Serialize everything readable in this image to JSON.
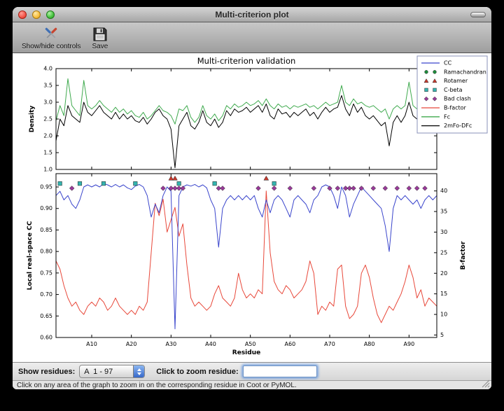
{
  "window": {
    "title": "Multi-criterion plot"
  },
  "toolbar": {
    "buttons": [
      {
        "label": "Show/hide controls",
        "icon": "tools-icon"
      },
      {
        "label": "Save",
        "icon": "save-icon"
      }
    ]
  },
  "controls": {
    "show_residues_label": "Show residues:",
    "residue_range_value": "A  1 - 97",
    "zoom_label": "Click to zoom residue:",
    "zoom_input_value": ""
  },
  "status_bar": {
    "text": "Click on any area of the graph to zoom in on the corresponding residue in Coot or PyMOL."
  },
  "chart_data": {
    "type": "line",
    "title": "Multi-criterion validation",
    "xlabel": "Residue",
    "xlim": [
      1,
      97
    ],
    "n_residues": 97,
    "grid": false,
    "legend_position": "upper right",
    "xticks": [
      {
        "v": 10,
        "label": "A10"
      },
      {
        "v": 20,
        "label": "A20"
      },
      {
        "v": 30,
        "label": "A30"
      },
      {
        "v": 40,
        "label": "A40"
      },
      {
        "v": 50,
        "label": "A50"
      },
      {
        "v": 60,
        "label": "A60"
      },
      {
        "v": 70,
        "label": "A70"
      },
      {
        "v": 80,
        "label": "A80"
      },
      {
        "v": 90,
        "label": "A90"
      }
    ],
    "legend": [
      {
        "label": "CC",
        "type": "line",
        "color": "#3a45cc"
      },
      {
        "label": "Ramachandran",
        "type": "circle",
        "color": "#1e8c3c"
      },
      {
        "label": "Rotamer",
        "type": "triangle",
        "color": "#c93a2e"
      },
      {
        "label": "C-beta",
        "type": "square",
        "color": "#35b5b0"
      },
      {
        "label": "Bad clash",
        "type": "diamond",
        "color": "#993b99"
      },
      {
        "label": "B-factor",
        "type": "line",
        "color": "#e8483a"
      },
      {
        "label": "Fc",
        "type": "line",
        "color": "#3faa4e"
      },
      {
        "label": "2mFo-DFc",
        "type": "line",
        "color": "#000000"
      }
    ],
    "top": {
      "ylabel": "Density",
      "ylim": [
        1.0,
        4.0
      ],
      "yticks": [
        {
          "v": 1.0,
          "label": "1.0"
        },
        {
          "v": 1.5,
          "label": "1.5"
        },
        {
          "v": 2.0,
          "label": "2.0"
        },
        {
          "v": 2.5,
          "label": "2.5"
        },
        {
          "v": 3.0,
          "label": "3.0"
        },
        {
          "v": 3.5,
          "label": "3.5"
        },
        {
          "v": 4.0,
          "label": "4.0"
        }
      ],
      "series": [
        {
          "name": "Fc",
          "color": "#3faa4e",
          "values": [
            2.45,
            2.9,
            2.6,
            3.7,
            2.9,
            2.75,
            2.6,
            3.65,
            2.9,
            2.8,
            2.9,
            3.05,
            2.9,
            2.8,
            2.7,
            2.85,
            2.7,
            2.8,
            2.65,
            2.75,
            2.6,
            2.55,
            2.7,
            2.5,
            2.6,
            2.75,
            2.9,
            2.75,
            2.7,
            2.6,
            2.35,
            2.8,
            2.75,
            2.9,
            2.55,
            2.4,
            2.55,
            2.9,
            2.6,
            2.5,
            2.65,
            2.45,
            2.6,
            2.9,
            2.8,
            2.95,
            2.85,
            2.9,
            3.0,
            2.9,
            2.95,
            3.05,
            2.9,
            3.1,
            2.9,
            2.8,
            2.95,
            2.85,
            2.9,
            2.8,
            2.9,
            2.85,
            2.9,
            2.95,
            2.85,
            2.9,
            2.8,
            2.9,
            3.0,
            2.9,
            2.95,
            3.0,
            3.5,
            3.0,
            2.9,
            3.1,
            2.95,
            3.0,
            2.9,
            2.85,
            2.9,
            2.8,
            2.7,
            2.8,
            2.5,
            2.8,
            2.9,
            2.8,
            2.9,
            3.6,
            2.9,
            2.8,
            2.9,
            2.7,
            2.9,
            3.4,
            3.1
          ]
        },
        {
          "name": "2mFo-DFc",
          "color": "#000000",
          "values": [
            1.85,
            2.5,
            2.3,
            2.9,
            2.6,
            2.5,
            2.4,
            3.0,
            2.7,
            2.6,
            2.75,
            2.9,
            2.7,
            2.6,
            2.5,
            2.7,
            2.5,
            2.65,
            2.5,
            2.6,
            2.45,
            2.4,
            2.55,
            2.35,
            2.5,
            2.7,
            2.8,
            2.6,
            2.5,
            2.2,
            1.05,
            2.3,
            2.5,
            2.7,
            2.3,
            2.2,
            2.4,
            2.75,
            2.4,
            2.3,
            2.5,
            2.25,
            2.4,
            2.75,
            2.6,
            2.8,
            2.7,
            2.75,
            2.85,
            2.7,
            2.8,
            2.9,
            2.7,
            2.95,
            2.6,
            2.5,
            2.8,
            2.65,
            2.7,
            2.55,
            2.7,
            2.6,
            2.7,
            2.8,
            2.6,
            2.7,
            2.5,
            2.7,
            2.85,
            2.7,
            2.8,
            2.85,
            3.2,
            2.8,
            2.6,
            2.95,
            2.7,
            2.85,
            2.6,
            2.5,
            2.6,
            2.45,
            2.3,
            2.4,
            1.7,
            2.4,
            2.6,
            2.4,
            2.6,
            3.0,
            2.6,
            2.5,
            2.6,
            2.3,
            2.6,
            2.95,
            2.9
          ]
        }
      ]
    },
    "bottom": {
      "ylabel_left": "Local real-space CC",
      "ylim_left": [
        0.6,
        0.981
      ],
      "yticks_left": [
        {
          "v": 0.6,
          "label": "0.60"
        },
        {
          "v": 0.65,
          "label": "0.65"
        },
        {
          "v": 0.7,
          "label": "0.70"
        },
        {
          "v": 0.75,
          "label": "0.75"
        },
        {
          "v": 0.8,
          "label": "0.80"
        },
        {
          "v": 0.85,
          "label": "0.85"
        },
        {
          "v": 0.9,
          "label": "0.90"
        },
        {
          "v": 0.95,
          "label": "0.95"
        }
      ],
      "ylabel_right": "B-factor",
      "ylim_right": [
        4.4,
        44.2
      ],
      "yticks_right": [
        {
          "v": 5,
          "label": "5"
        },
        {
          "v": 10,
          "label": "10"
        },
        {
          "v": 15,
          "label": "15"
        },
        {
          "v": 20,
          "label": "20"
        },
        {
          "v": 25,
          "label": "25"
        },
        {
          "v": 30,
          "label": "30"
        },
        {
          "v": 35,
          "label": "35"
        },
        {
          "v": 40,
          "label": "40"
        }
      ],
      "series": [
        {
          "name": "B-factor",
          "axis": "right",
          "color": "#e8483a",
          "values": [
            23,
            21,
            17,
            14,
            12,
            13,
            11,
            10,
            12,
            13,
            12,
            14,
            13,
            11,
            12,
            14,
            12,
            11,
            10,
            11,
            10,
            12,
            11,
            13,
            25,
            37,
            34,
            38,
            30,
            33,
            36,
            29,
            32,
            22,
            14,
            12,
            13,
            12,
            11,
            12,
            15,
            17,
            14,
            13,
            12,
            14,
            20,
            16,
            14,
            15,
            14,
            16,
            15,
            40,
            25,
            18,
            16,
            15,
            17,
            16,
            14,
            15,
            16,
            18,
            23,
            20,
            10,
            12,
            11,
            13,
            12,
            21,
            22,
            12,
            9,
            10,
            12,
            20,
            22,
            19,
            14,
            10,
            8,
            10,
            12,
            11,
            13,
            15,
            18,
            22,
            19,
            14,
            16,
            12,
            14,
            13,
            12
          ]
        },
        {
          "name": "CC",
          "axis": "left",
          "color": "#3a45cc",
          "values": [
            0.93,
            0.94,
            0.92,
            0.93,
            0.91,
            0.9,
            0.92,
            0.95,
            0.955,
            0.95,
            0.955,
            0.95,
            0.958,
            0.955,
            0.95,
            0.956,
            0.95,
            0.955,
            0.948,
            0.944,
            0.952,
            0.956,
            0.95,
            0.93,
            0.88,
            0.91,
            0.89,
            0.93,
            0.95,
            0.94,
            0.62,
            0.93,
            0.95,
            0.955,
            0.952,
            0.956,
            0.95,
            0.955,
            0.948,
            0.92,
            0.9,
            0.81,
            0.9,
            0.92,
            0.93,
            0.92,
            0.93,
            0.92,
            0.93,
            0.92,
            0.93,
            0.9,
            0.88,
            0.92,
            0.89,
            0.92,
            0.93,
            0.92,
            0.9,
            0.88,
            0.92,
            0.93,
            0.92,
            0.91,
            0.89,
            0.92,
            0.93,
            0.95,
            0.955,
            0.95,
            0.93,
            0.9,
            0.95,
            0.93,
            0.88,
            0.91,
            0.93,
            0.95,
            0.94,
            0.93,
            0.92,
            0.91,
            0.9,
            0.86,
            0.8,
            0.9,
            0.93,
            0.92,
            0.93,
            0.92,
            0.91,
            0.92,
            0.9,
            0.92,
            0.93,
            0.92,
            0.93
          ]
        }
      ],
      "markers": {
        "ramachandran": {
          "shape": "circle",
          "color": "#1e8c3c",
          "y": 0.975,
          "residues": []
        },
        "rotamer": {
          "shape": "triangle",
          "color": "#c93a2e",
          "y": 0.97,
          "residues": [
            30,
            31,
            54
          ]
        },
        "cbeta": {
          "shape": "square",
          "color": "#35b5b0",
          "y": 0.958,
          "residues": [
            2,
            7,
            13,
            21,
            32,
            41,
            56
          ]
        },
        "badclash": {
          "shape": "diamond",
          "color": "#993b99",
          "y": 0.947,
          "residues": [
            5,
            28,
            30,
            31,
            32,
            33,
            42,
            43,
            52,
            56,
            60,
            66,
            70,
            72,
            74,
            75,
            76,
            78,
            81,
            84,
            87,
            90,
            92,
            94
          ]
        }
      }
    }
  }
}
